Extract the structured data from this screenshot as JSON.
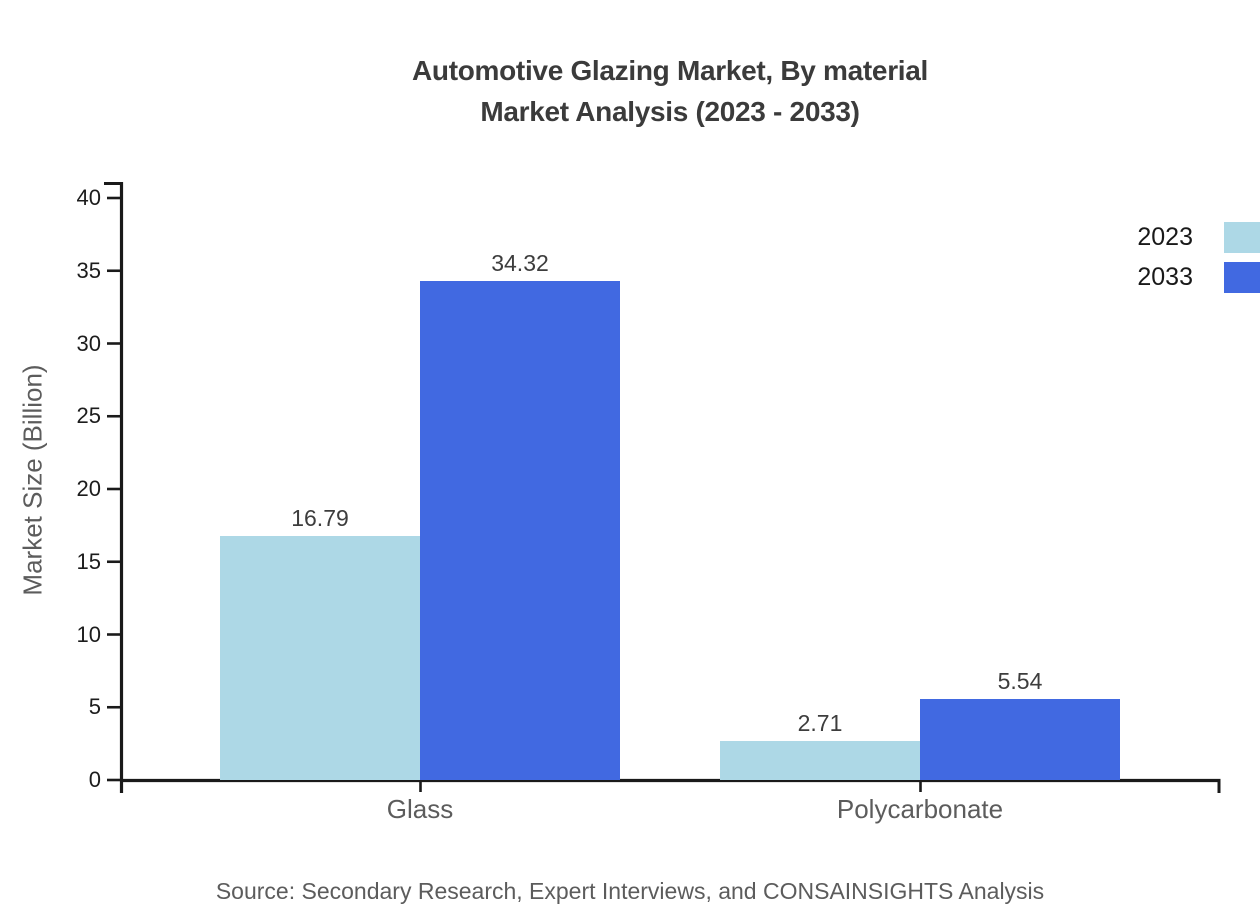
{
  "title": {
    "line1": "Automotive Glazing Market, By material",
    "line2": "Market Analysis (2023 - 2033)"
  },
  "source": "Source: Secondary Research, Expert Interviews, and CONSAINSIGHTS Analysis",
  "chart_data": {
    "type": "bar",
    "title": "Automotive Glazing Market, By material Market Analysis (2023 - 2033)",
    "categories": [
      "Glass",
      "Polycarbonate"
    ],
    "series": [
      {
        "name": "2023",
        "color": "#add8e6",
        "values": [
          16.79,
          2.71
        ]
      },
      {
        "name": "2033",
        "color": "#4169e1",
        "values": [
          34.32,
          5.54
        ]
      }
    ],
    "xlabel": "",
    "ylabel": "Market Size (Billion)",
    "ylim": [
      0,
      40
    ],
    "yticks": [
      0,
      5,
      10,
      15,
      20,
      25,
      30,
      35,
      40
    ],
    "grid": false,
    "legend_position": "top-right",
    "axis_color": "#1a1a1a"
  }
}
